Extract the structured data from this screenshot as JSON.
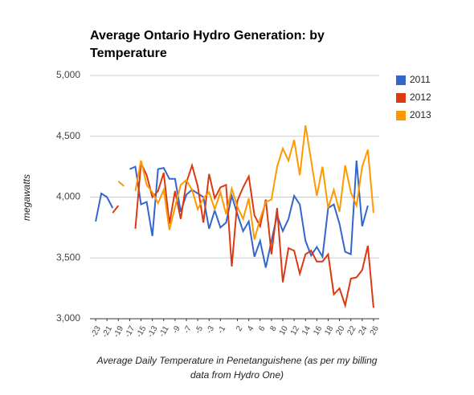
{
  "chart_data": {
    "type": "line",
    "title": "Average Ontario Hydro Generation: by Temperature",
    "xlabel": "Average Daily Temperature in Penetanguishene (as per my billing data from Hydro One)",
    "ylabel": "megawatts",
    "x": [
      -23,
      -22,
      -21,
      -20,
      -19,
      -18,
      -17,
      -16,
      -15,
      -14,
      -13,
      -12,
      -11,
      -10,
      -9,
      -8,
      -7,
      -6,
      -5,
      -4,
      -3,
      -2,
      -1,
      0,
      1,
      2,
      3,
      4,
      5,
      6,
      7,
      8,
      9,
      10,
      11,
      12,
      13,
      14,
      15,
      16,
      17,
      18,
      19,
      20,
      21,
      22,
      23,
      24,
      25,
      26
    ],
    "series": [
      {
        "name": "2011",
        "color": "#3366cc",
        "values": [
          3800,
          4030,
          4000,
          3910,
          null,
          null,
          4230,
          4250,
          3940,
          3960,
          3680,
          4230,
          4240,
          4150,
          4150,
          3880,
          4020,
          4060,
          4030,
          4000,
          3740,
          3890,
          3750,
          3790,
          4010,
          3860,
          3720,
          3800,
          3510,
          3640,
          3420,
          3640,
          3850,
          3720,
          3820,
          4010,
          3940,
          3640,
          3520,
          3590,
          3510,
          3910,
          3940,
          3780,
          3550,
          3530,
          4300,
          3760,
          3930,
          null
        ]
      },
      {
        "name": "2012",
        "color": "#dc3912",
        "values": [
          null,
          null,
          null,
          3870,
          3930,
          null,
          null,
          3740,
          4280,
          4180,
          4000,
          4050,
          4200,
          3780,
          4050,
          3820,
          4120,
          4260,
          4090,
          3790,
          4190,
          3990,
          4080,
          4100,
          3430,
          3970,
          4080,
          4170,
          3850,
          3760,
          3980,
          3530,
          3910,
          3300,
          3580,
          3560,
          3370,
          3530,
          3560,
          3470,
          3470,
          3530,
          3200,
          3250,
          3110,
          3330,
          3340,
          3400,
          3600,
          3090
        ]
      },
      {
        "name": "2013",
        "color": "#ff9900",
        "values": [
          null,
          null,
          null,
          null,
          4130,
          4090,
          null,
          4050,
          4300,
          4100,
          4040,
          3950,
          4060,
          3730,
          3920,
          4100,
          4140,
          4060,
          3900,
          3990,
          4040,
          3900,
          4040,
          3860,
          4070,
          3920,
          3820,
          3990,
          3650,
          3820,
          3960,
          3980,
          4250,
          4400,
          4300,
          4470,
          4180,
          4590,
          4300,
          4010,
          4250,
          3910,
          4060,
          3880,
          4260,
          4040,
          3930,
          4250,
          4390,
          3870
        ]
      }
    ],
    "xlim": [
      -24,
      27
    ],
    "xticks": [
      -23,
      -21,
      -19,
      -17,
      -15,
      -13,
      -11,
      -9,
      -7,
      -5,
      -3,
      -1,
      2,
      4,
      6,
      8,
      10,
      12,
      14,
      16,
      18,
      20,
      22,
      24,
      26
    ],
    "ylim": [
      3000,
      5000
    ],
    "yticks": [
      {
        "value": 3000,
        "label": "3,000"
      },
      {
        "value": 3500,
        "label": "3,500"
      },
      {
        "value": 4000,
        "label": "4,000"
      },
      {
        "value": 4500,
        "label": "4,500"
      },
      {
        "value": 5000,
        "label": "5,000"
      }
    ],
    "grid": true,
    "legend": "right"
  }
}
